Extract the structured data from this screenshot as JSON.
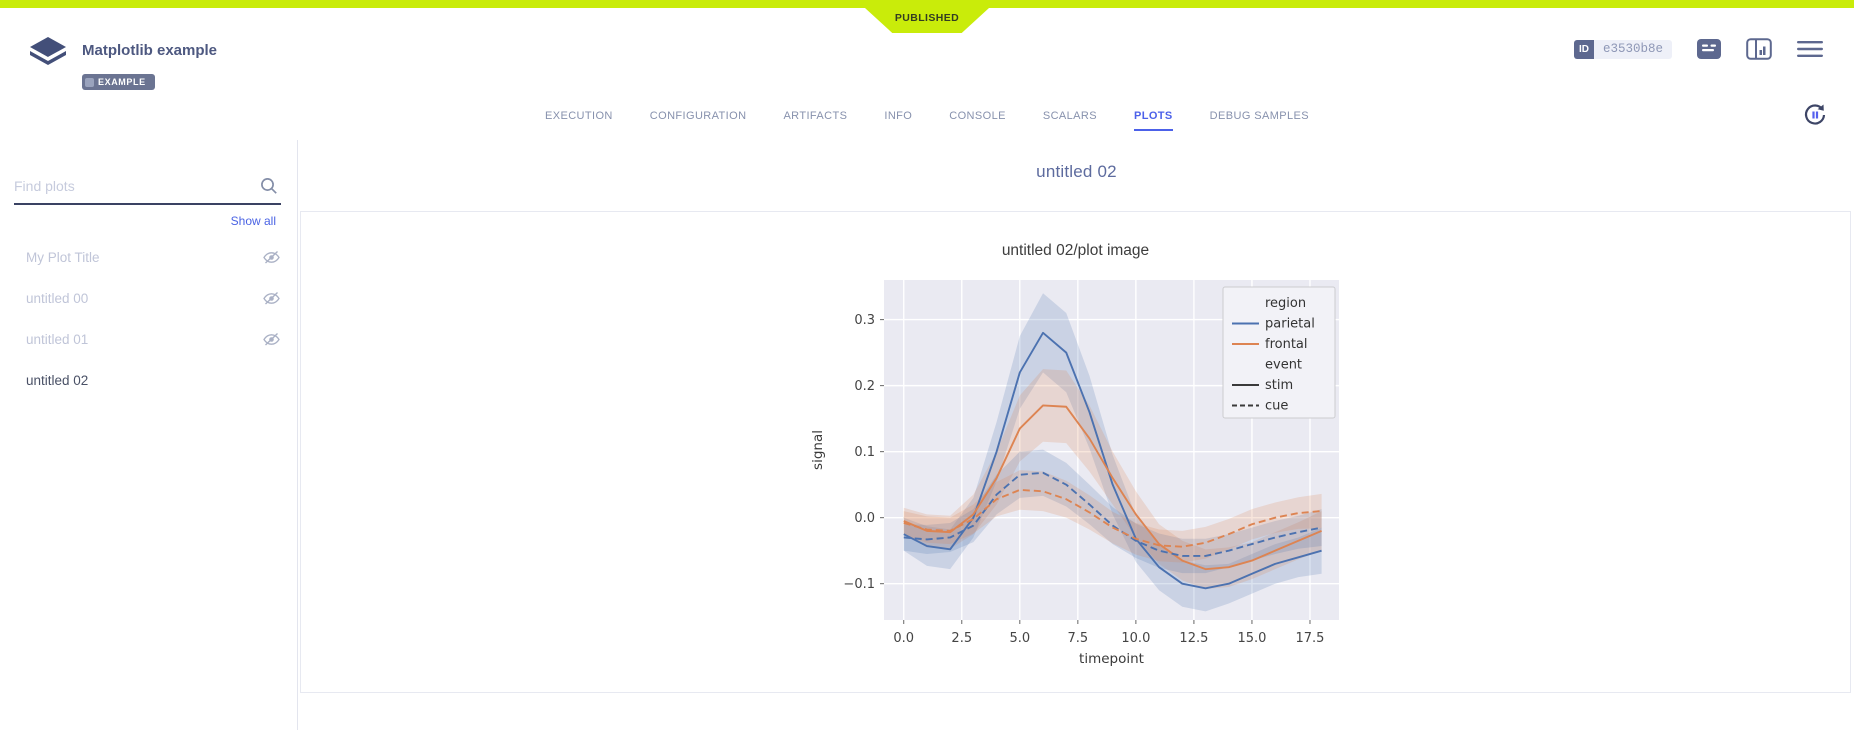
{
  "app": {
    "status_badge": "PUBLISHED"
  },
  "header": {
    "title": "Matplotlib example",
    "system_tag": "EXAMPLE",
    "id_label": "ID",
    "id_value": "e3530b8e"
  },
  "tabs": [
    {
      "label": "EXECUTION",
      "active": false
    },
    {
      "label": "CONFIGURATION",
      "active": false
    },
    {
      "label": "ARTIFACTS",
      "active": false
    },
    {
      "label": "INFO",
      "active": false
    },
    {
      "label": "CONSOLE",
      "active": false
    },
    {
      "label": "SCALARS",
      "active": false
    },
    {
      "label": "PLOTS",
      "active": true
    },
    {
      "label": "DEBUG SAMPLES",
      "active": false
    }
  ],
  "sidebar": {
    "search_placeholder": "Find plots",
    "show_all_label": "Show all",
    "items": [
      {
        "label": "My Plot Title",
        "hidden": true,
        "selected": false
      },
      {
        "label": "untitled 00",
        "hidden": true,
        "selected": false
      },
      {
        "label": "untitled 01",
        "hidden": true,
        "selected": false
      },
      {
        "label": "untitled 02",
        "hidden": false,
        "selected": true
      }
    ]
  },
  "main": {
    "group_title": "untitled 02",
    "plot_title": "untitled 02/plot image"
  },
  "colors": {
    "accent_green": "#c9ec0a",
    "accent_blue": "#4c61e9",
    "slate": "#5d688f"
  },
  "chart_data": {
    "type": "line",
    "title": "untitled 02/plot image",
    "xlabel": "timepoint",
    "ylabel": "signal",
    "xlim": [
      -0.85,
      18.75
    ],
    "ylim": [
      -0.155,
      0.36
    ],
    "xticks": [
      0.0,
      2.5,
      5.0,
      7.5,
      10.0,
      12.5,
      15.0,
      17.5
    ],
    "yticks": [
      -0.1,
      0.0,
      0.1,
      0.2,
      0.3
    ],
    "grid": true,
    "plot_bg": "#eaeaf2",
    "x": [
      0,
      1,
      2,
      3,
      4,
      5,
      6,
      7,
      8,
      9,
      10,
      11,
      12,
      13,
      14,
      15,
      16,
      17,
      18
    ],
    "series": [
      {
        "name": "parietal stim",
        "region": "parietal",
        "event": "stim",
        "color": "#4c72b0",
        "dash": "solid",
        "values": [
          -0.025,
          -0.043,
          -0.048,
          0.0,
          0.1,
          0.22,
          0.28,
          0.25,
          0.16,
          0.05,
          -0.032,
          -0.075,
          -0.1,
          -0.107,
          -0.1,
          -0.085,
          -0.07,
          -0.06,
          -0.05
        ],
        "ci": [
          0.025,
          0.03,
          0.03,
          0.03,
          0.045,
          0.055,
          0.06,
          0.06,
          0.055,
          0.045,
          0.035,
          0.035,
          0.035,
          0.035,
          0.03,
          0.03,
          0.03,
          0.03,
          0.035
        ]
      },
      {
        "name": "frontal stim",
        "region": "frontal",
        "event": "stim",
        "color": "#dd8452",
        "dash": "solid",
        "values": [
          -0.005,
          -0.02,
          -0.022,
          0.005,
          0.06,
          0.135,
          0.17,
          0.168,
          0.12,
          0.06,
          0.005,
          -0.04,
          -0.065,
          -0.078,
          -0.075,
          -0.065,
          -0.05,
          -0.035,
          -0.02
        ],
        "ci": [
          0.02,
          0.025,
          0.025,
          0.03,
          0.04,
          0.05,
          0.055,
          0.055,
          0.05,
          0.04,
          0.035,
          0.03,
          0.03,
          0.03,
          0.03,
          0.028,
          0.028,
          0.028,
          0.03
        ]
      },
      {
        "name": "parietal cue",
        "region": "parietal",
        "event": "cue",
        "color": "#4c72b0",
        "dash": "dashed",
        "values": [
          -0.03,
          -0.033,
          -0.03,
          -0.012,
          0.035,
          0.065,
          0.068,
          0.05,
          0.02,
          -0.012,
          -0.035,
          -0.05,
          -0.058,
          -0.058,
          -0.05,
          -0.04,
          -0.03,
          -0.022,
          -0.015
        ],
        "ci": [
          0.02,
          0.022,
          0.022,
          0.025,
          0.03,
          0.035,
          0.035,
          0.033,
          0.03,
          0.028,
          0.026,
          0.026,
          0.026,
          0.026,
          0.025,
          0.025,
          0.025,
          0.025,
          0.028
        ]
      },
      {
        "name": "frontal cue",
        "region": "frontal",
        "event": "cue",
        "color": "#dd8452",
        "dash": "dashed",
        "values": [
          -0.008,
          -0.018,
          -0.02,
          -0.002,
          0.028,
          0.042,
          0.04,
          0.028,
          0.008,
          -0.015,
          -0.032,
          -0.042,
          -0.044,
          -0.038,
          -0.025,
          -0.01,
          0.0,
          0.007,
          0.01
        ],
        "ci": [
          0.018,
          0.02,
          0.02,
          0.022,
          0.026,
          0.03,
          0.03,
          0.028,
          0.026,
          0.024,
          0.024,
          0.024,
          0.024,
          0.024,
          0.023,
          0.023,
          0.023,
          0.024,
          0.026
        ]
      }
    ],
    "legend": {
      "position": "upper right",
      "groups": [
        {
          "title": "region",
          "entries": [
            {
              "label": "parietal",
              "color": "#4c72b0",
              "dash": "solid"
            },
            {
              "label": "frontal",
              "color": "#dd8452",
              "dash": "solid"
            }
          ]
        },
        {
          "title": "event",
          "entries": [
            {
              "label": "stim",
              "color": "#3a3a3a",
              "dash": "solid"
            },
            {
              "label": "cue",
              "color": "#3a3a3a",
              "dash": "dashed"
            }
          ]
        }
      ]
    }
  }
}
